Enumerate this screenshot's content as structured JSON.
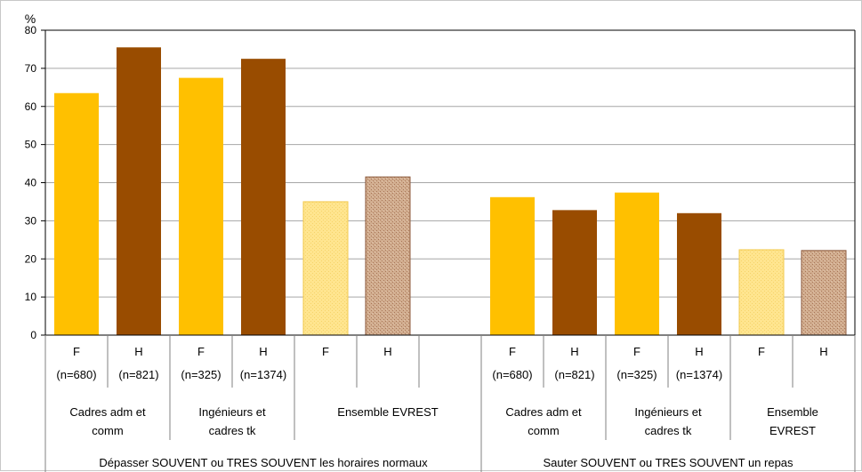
{
  "chart_data": {
    "type": "bar",
    "y_unit": "%",
    "ylim": [
      0,
      80
    ],
    "y_ticks": [
      0,
      10,
      20,
      30,
      40,
      50,
      60,
      70,
      80
    ],
    "grid": true,
    "colors": {
      "F": "#FFC000",
      "H": "#994C00",
      "F_ensemble": "#FFE58F",
      "H_ensemble": "#C8A082",
      "grid": "#A6A6A6",
      "axis": "#000000"
    },
    "bars": [
      {
        "sex": "F",
        "n": "(n=680)",
        "value": 63.5,
        "style": "solid"
      },
      {
        "sex": "H",
        "n": "(n=821)",
        "value": 75.5,
        "style": "solid"
      },
      {
        "sex": "F",
        "n": "(n=325)",
        "value": 67.5,
        "style": "solid"
      },
      {
        "sex": "H",
        "n": "(n=1374)",
        "value": 72.5,
        "style": "solid"
      },
      {
        "sex": "F",
        "n": "",
        "value": 35.0,
        "style": "ensemble"
      },
      {
        "sex": "H",
        "n": "",
        "value": 41.5,
        "style": "ensemble"
      },
      null,
      {
        "sex": "F",
        "n": "(n=680)",
        "value": 36.2,
        "style": "solid"
      },
      {
        "sex": "H",
        "n": "(n=821)",
        "value": 32.8,
        "style": "solid"
      },
      {
        "sex": "F",
        "n": "(n=325)",
        "value": 37.4,
        "style": "solid"
      },
      {
        "sex": "H",
        "n": "(n=1374)",
        "value": 32.0,
        "style": "solid"
      },
      {
        "sex": "F",
        "n": "",
        "value": 22.4,
        "style": "ensemble"
      },
      {
        "sex": "H",
        "n": "",
        "value": 22.2,
        "style": "ensemble"
      }
    ],
    "groups": [
      {
        "lines": [
          "Cadres adm et",
          "comm"
        ],
        "start": 0,
        "end": 2
      },
      {
        "lines": [
          "Ingénieurs et",
          "cadres tk"
        ],
        "start": 2,
        "end": 4
      },
      {
        "lines": [
          "Ensemble  EVREST"
        ],
        "start": 4,
        "end": 7
      },
      {
        "lines": [
          "Cadres adm et",
          "comm"
        ],
        "start": 7,
        "end": 9
      },
      {
        "lines": [
          "Ingénieurs et",
          "cadres tk"
        ],
        "start": 9,
        "end": 11
      },
      {
        "lines": [
          "Ensemble",
          "EVREST"
        ],
        "start": 11,
        "end": 13
      }
    ],
    "supergroups": [
      {
        "label": "Dépasser SOUVENT ou TRES SOUVENT les horaires normaux",
        "start": 0,
        "end": 7
      },
      {
        "label": "Sauter SOUVENT ou TRES SOUVENT un repas",
        "start": 7,
        "end": 13
      }
    ]
  }
}
